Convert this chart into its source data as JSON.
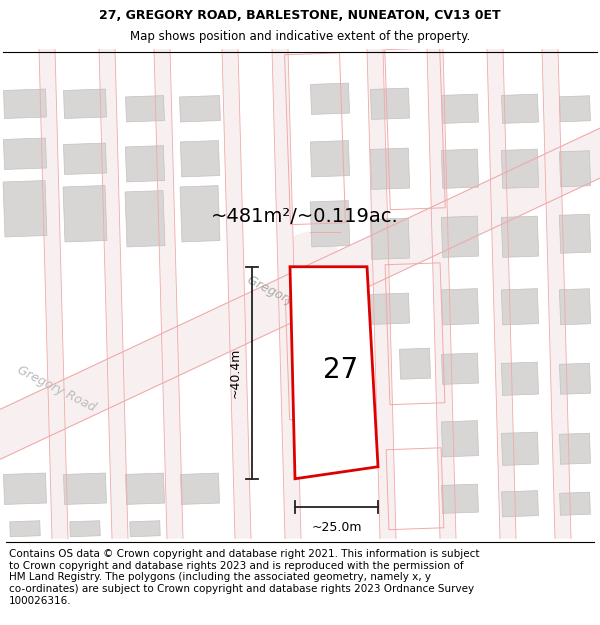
{
  "title_line1": "27, GREGORY ROAD, BARLESTONE, NUNEATON, CV13 0ET",
  "title_line2": "Map shows position and indicative extent of the property.",
  "footer_text": "Contains OS data © Crown copyright and database right 2021. This information is subject to Crown copyright and database rights 2023 and is reproduced with the permission of HM Land Registry. The polygons (including the associated geometry, namely x, y co-ordinates) are subject to Crown copyright and database rights 2023 Ordnance Survey 100026316.",
  "area_label": "~481m²/~0.119ac.",
  "plot_number": "27",
  "dim_width": "~25.0m",
  "dim_height": "~40.4m",
  "road_label": "Gregory Road",
  "bg_color": "#ffffff",
  "map_bg": "#faf8f8",
  "plot_outline_color": "#dd0000",
  "plot_fill": "#ffffff",
  "building_fill": "#d8d5d5",
  "building_edge": "#c5c0c0",
  "road_line_color": "#f0aaaa",
  "road_fill_color": "#f8f0f0",
  "dim_line_color": "#222222",
  "title_fontsize": 9.0,
  "subtitle_fontsize": 8.5,
  "footer_fontsize": 7.5,
  "area_fontsize": 14,
  "plot_label_fontsize": 20,
  "road_label_fontsize": 9,
  "dim_label_fontsize": 9
}
